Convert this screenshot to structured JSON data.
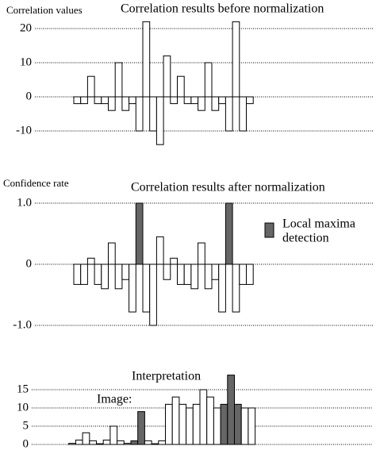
{
  "chart_data": [
    {
      "type": "bar",
      "title": "Correlation results before normalization",
      "y_label": "Correlation values",
      "values": [
        -2,
        -2,
        6,
        -2,
        -2,
        -4,
        10,
        -4,
        -2,
        -10,
        22,
        -10,
        -14,
        12,
        -2,
        6,
        -2,
        -2,
        -4,
        10,
        -4,
        -2,
        -10,
        22,
        -10,
        -2
      ],
      "color": "#ffffff",
      "ylim": [
        -15,
        25
      ],
      "yticks": [
        -10,
        0,
        10,
        20
      ],
      "grid": true
    },
    {
      "type": "bar",
      "title": "Correlation results after normalization",
      "y_label": "Confidence rate",
      "values": [
        -0.33,
        -0.33,
        0.1,
        -0.33,
        -0.4,
        0.35,
        -0.4,
        -0.25,
        -0.78,
        1.0,
        -0.78,
        -1.0,
        0.45,
        -0.25,
        0.1,
        -0.33,
        -0.33,
        -0.4,
        0.35,
        -0.4,
        -0.25,
        -0.78,
        1.0,
        -0.78,
        -0.33,
        -0.33
      ],
      "colors": [
        "#ffffff",
        "#ffffff",
        "#ffffff",
        "#ffffff",
        "#ffffff",
        "#ffffff",
        "#ffffff",
        "#ffffff",
        "#ffffff",
        "#666666",
        "#ffffff",
        "#ffffff",
        "#ffffff",
        "#ffffff",
        "#ffffff",
        "#ffffff",
        "#ffffff",
        "#ffffff",
        "#ffffff",
        "#ffffff",
        "#ffffff",
        "#ffffff",
        "#666666",
        "#ffffff",
        "#ffffff",
        "#ffffff"
      ],
      "legend": {
        "lines": [
          "Local maxima",
          "detection"
        ],
        "color": "#666666"
      },
      "ylim": [
        -1.1,
        1.1
      ],
      "yticks": [
        {
          "value": -1,
          "label": "-1.0"
        },
        0,
        {
          "value": 1,
          "label": "1.0"
        }
      ],
      "grid": true
    },
    {
      "type": "bar",
      "title": "Interpretation",
      "annotation": "Image:",
      "values": [
        0,
        0.3,
        1.2,
        3.2,
        1,
        0.2,
        1.2,
        5,
        1,
        0.3,
        1,
        9,
        1,
        0.2,
        1,
        11,
        13,
        11,
        10,
        11,
        15,
        13,
        10,
        11,
        19,
        11,
        10,
        10
      ],
      "colors": [
        "#ffffff",
        "#ffffff",
        "#ffffff",
        "#ffffff",
        "#ffffff",
        "#ffffff",
        "#ffffff",
        "#ffffff",
        "#ffffff",
        "#ffffff",
        "#666666",
        "#666666",
        "#ffffff",
        "#ffffff",
        "#ffffff",
        "#ffffff",
        "#ffffff",
        "#ffffff",
        "#ffffff",
        "#ffffff",
        "#ffffff",
        "#ffffff",
        "#ffffff",
        "#666666",
        "#666666",
        "#666666",
        "#ffffff",
        "#ffffff"
      ],
      "ylim": [
        0,
        20
      ],
      "yticks": [
        0,
        5,
        10,
        15
      ],
      "grid": true
    }
  ]
}
